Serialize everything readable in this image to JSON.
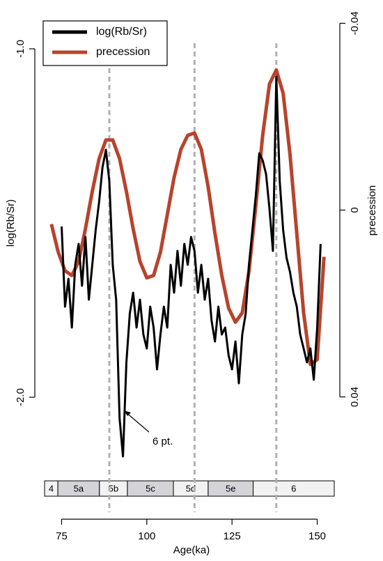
{
  "chart_data": {
    "type": "line",
    "x_label": "Age(ka)",
    "y_label": "log(Rb/Sr)",
    "y2_label": "precession",
    "xlim": [
      70,
      155
    ],
    "xticks": [
      75,
      100,
      125,
      150
    ],
    "ylim": [
      -2.18,
      -0.9
    ],
    "yticks": [
      {
        "value": -1,
        "label": "-1.0"
      },
      {
        "value": -2,
        "label": "-2.0"
      }
    ],
    "y2lim": [
      0.0535,
      -0.042
    ],
    "y2ticks": [
      -0.04,
      0,
      0.04
    ],
    "legend": "top-left",
    "series": [
      {
        "name": "log(Rb/Sr)",
        "color": "#000000",
        "x": [
          75,
          76,
          77,
          78,
          79,
          80,
          81,
          82,
          83,
          84,
          85,
          86,
          87,
          88,
          89,
          90,
          91,
          92,
          93,
          94,
          95,
          96,
          97,
          98,
          99,
          100,
          101,
          102,
          103,
          104,
          105,
          106,
          107,
          108,
          109,
          110,
          111,
          112,
          113,
          114,
          115,
          116,
          117,
          118,
          119,
          120,
          121,
          122,
          123,
          124,
          125,
          126,
          127,
          128,
          129,
          130,
          131,
          132,
          133,
          134,
          135,
          136,
          137,
          138,
          139,
          140,
          141,
          142,
          143,
          144,
          145,
          146,
          147,
          148,
          149,
          150,
          151
        ],
        "values": [
          -1.51,
          -1.74,
          -1.66,
          -1.8,
          -1.62,
          -1.56,
          -1.68,
          -1.54,
          -1.72,
          -1.62,
          -1.52,
          -1.44,
          -1.34,
          -1.29,
          -1.38,
          -1.62,
          -1.72,
          -2.06,
          -2.17,
          -1.9,
          -1.76,
          -1.7,
          -1.8,
          -1.72,
          -1.82,
          -1.86,
          -1.74,
          -1.8,
          -1.92,
          -1.82,
          -1.74,
          -1.8,
          -1.62,
          -1.7,
          -1.58,
          -1.68,
          -1.56,
          -1.62,
          -1.54,
          -1.58,
          -1.7,
          -1.62,
          -1.72,
          -1.66,
          -1.78,
          -1.84,
          -1.74,
          -1.82,
          -1.8,
          -1.88,
          -1.92,
          -1.84,
          -1.96,
          -1.82,
          -1.76,
          -1.62,
          -1.52,
          -1.42,
          -1.3,
          -1.32,
          -1.36,
          -1.46,
          -1.58,
          -1.08,
          -1.38,
          -1.52,
          -1.6,
          -1.64,
          -1.7,
          -1.74,
          -1.82,
          -1.86,
          -1.9,
          -1.86,
          -1.95,
          -1.8,
          -1.56
        ]
      },
      {
        "name": "precession",
        "color": "#b8432c",
        "axis": "y2",
        "x": [
          72,
          74,
          76,
          78,
          80,
          82,
          84,
          86,
          88,
          90,
          92,
          94,
          96,
          98,
          100,
          102,
          104,
          106,
          108,
          110,
          112,
          114,
          116,
          118,
          120,
          122,
          124,
          126,
          128,
          130,
          132,
          134,
          136,
          138,
          140,
          142,
          144,
          146,
          148,
          150,
          152
        ],
        "values": [
          0.003,
          0.009,
          0.013,
          0.014,
          0.011,
          0.004,
          -0.004,
          -0.011,
          -0.015,
          -0.015,
          -0.011,
          -0.004,
          0.004,
          0.011,
          0.0145,
          0.014,
          0.009,
          0.001,
          -0.007,
          -0.013,
          -0.016,
          -0.0165,
          -0.013,
          -0.005,
          0.005,
          0.014,
          0.021,
          0.024,
          0.022,
          0.013,
          -0.001,
          -0.016,
          -0.027,
          -0.03,
          -0.025,
          -0.012,
          0.005,
          0.022,
          0.033,
          0.032,
          0.01
        ]
      }
    ],
    "vlines": [
      89,
      114,
      138
    ],
    "annotation": "6 pt.",
    "stages": [
      {
        "label": "4",
        "from": 70,
        "to": 73.9,
        "shaded": false
      },
      {
        "label": "5a",
        "from": 73.9,
        "to": 86.1,
        "shaded": true
      },
      {
        "label": "5b",
        "from": 86.1,
        "to": 94.3,
        "shaded": false
      },
      {
        "label": "5c",
        "from": 94.3,
        "to": 107.8,
        "shaded": true
      },
      {
        "label": "5d",
        "from": 107.8,
        "to": 118,
        "shaded": false
      },
      {
        "label": "5e",
        "from": 118,
        "to": 131.2,
        "shaded": true
      },
      {
        "label": "6",
        "from": 131.2,
        "to": 155,
        "shaded": false
      }
    ]
  }
}
